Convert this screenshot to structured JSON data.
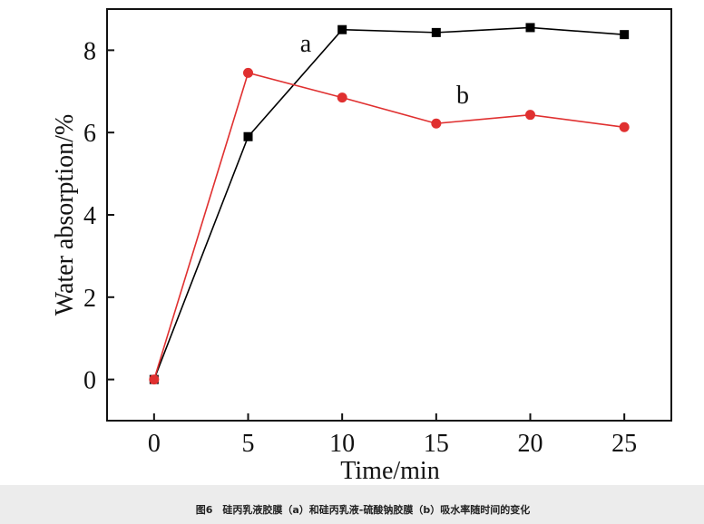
{
  "chart_data": {
    "type": "line",
    "x_label": "Time/min",
    "y_label": "Water absorption/%",
    "x": [
      0,
      5,
      10,
      15,
      20,
      25
    ],
    "series": [
      {
        "name": "a",
        "color": "#000000",
        "marker": "square",
        "values": [
          0,
          5.9,
          8.5,
          8.43,
          8.55,
          8.38
        ]
      },
      {
        "name": "b",
        "color": "#e03030",
        "marker": "circle",
        "values": [
          0,
          7.45,
          6.85,
          6.22,
          6.43,
          6.13
        ]
      }
    ],
    "xlim": [
      -2.5,
      27.5
    ],
    "xticks": [
      0,
      5,
      10,
      15,
      20,
      25
    ],
    "ylim": [
      -1,
      9
    ],
    "yticks": [
      0,
      2,
      4,
      6,
      8
    ],
    "caption": "图6　硅丙乳液胶膜（a）和硅丙乳液-硫酸钠胶膜（b）吸水率随时间的变化"
  }
}
